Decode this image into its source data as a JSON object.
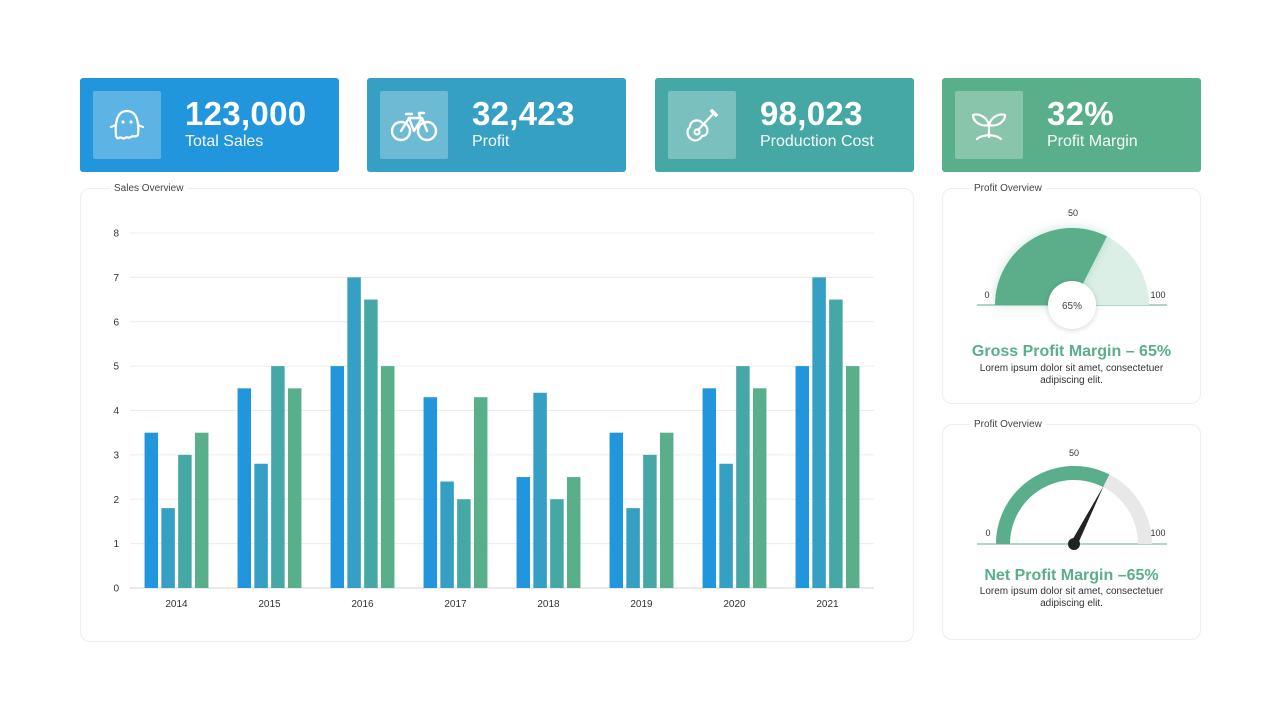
{
  "kpis": [
    {
      "value": "123,000",
      "label": "Total Sales",
      "icon": "ghost-icon",
      "color": "#2196dc"
    },
    {
      "value": "32,423",
      "label": "Profit",
      "icon": "bicycle-icon",
      "color": "#35a0c4"
    },
    {
      "value": "98,023",
      "label": "Production Cost",
      "icon": "guitar-icon",
      "color": "#46a8a5"
    },
    {
      "value": "32%",
      "label": "Profit Margin",
      "icon": "sprout-icon",
      "color": "#5aaf8b"
    }
  ],
  "sales_panel": {
    "title": "Sales Overview"
  },
  "chart_data": {
    "type": "bar",
    "categories": [
      "2014",
      "2015",
      "2016",
      "2017",
      "2018",
      "2019",
      "2020",
      "2021"
    ],
    "series": [
      {
        "values": [
          3.5,
          4.5,
          5,
          4.3,
          2.5,
          3.5,
          4.5,
          5
        ],
        "color": "#2196dc"
      },
      {
        "values": [
          1.8,
          2.8,
          7,
          2.4,
          4.4,
          1.8,
          2.8,
          7
        ],
        "color": "#35a0c4"
      },
      {
        "values": [
          3,
          5,
          6.5,
          2,
          2,
          3,
          5,
          6.5
        ],
        "color": "#46a8a5"
      },
      {
        "values": [
          3.5,
          4.5,
          5,
          4.3,
          2.5,
          3.5,
          4.5,
          5
        ],
        "color": "#5aaf8b"
      }
    ],
    "ylim": [
      0,
      8
    ],
    "yticks": [
      "0",
      "1",
      "2",
      "3",
      "4",
      "5",
      "6",
      "7",
      "8"
    ],
    "grid": true,
    "title": "",
    "xlabel": "",
    "ylabel": ""
  },
  "gauge1": {
    "panel_title": "Profit Overview",
    "min_label": "0",
    "mid_label": "50",
    "max_label": "100",
    "value": 65,
    "value_label": "65%",
    "title": "Gross Profit Margin – 65%",
    "desc_line1": "Lorem ipsum dolor  sit amet, consectetuer",
    "desc_line2": "adipiscing elit."
  },
  "gauge2": {
    "panel_title": "Profit Overview",
    "min_label": "0",
    "mid_label": "50",
    "max_label": "100",
    "value": 65,
    "title": "Net Profit Margin –65%",
    "desc_line1": "Lorem ipsum dolor  sit amet, consectetuer",
    "desc_line2": "adipiscing elit."
  },
  "colors": {
    "accent_green": "#5bae8b",
    "gauge_track": "#dcefe7",
    "needle": "#222222"
  }
}
